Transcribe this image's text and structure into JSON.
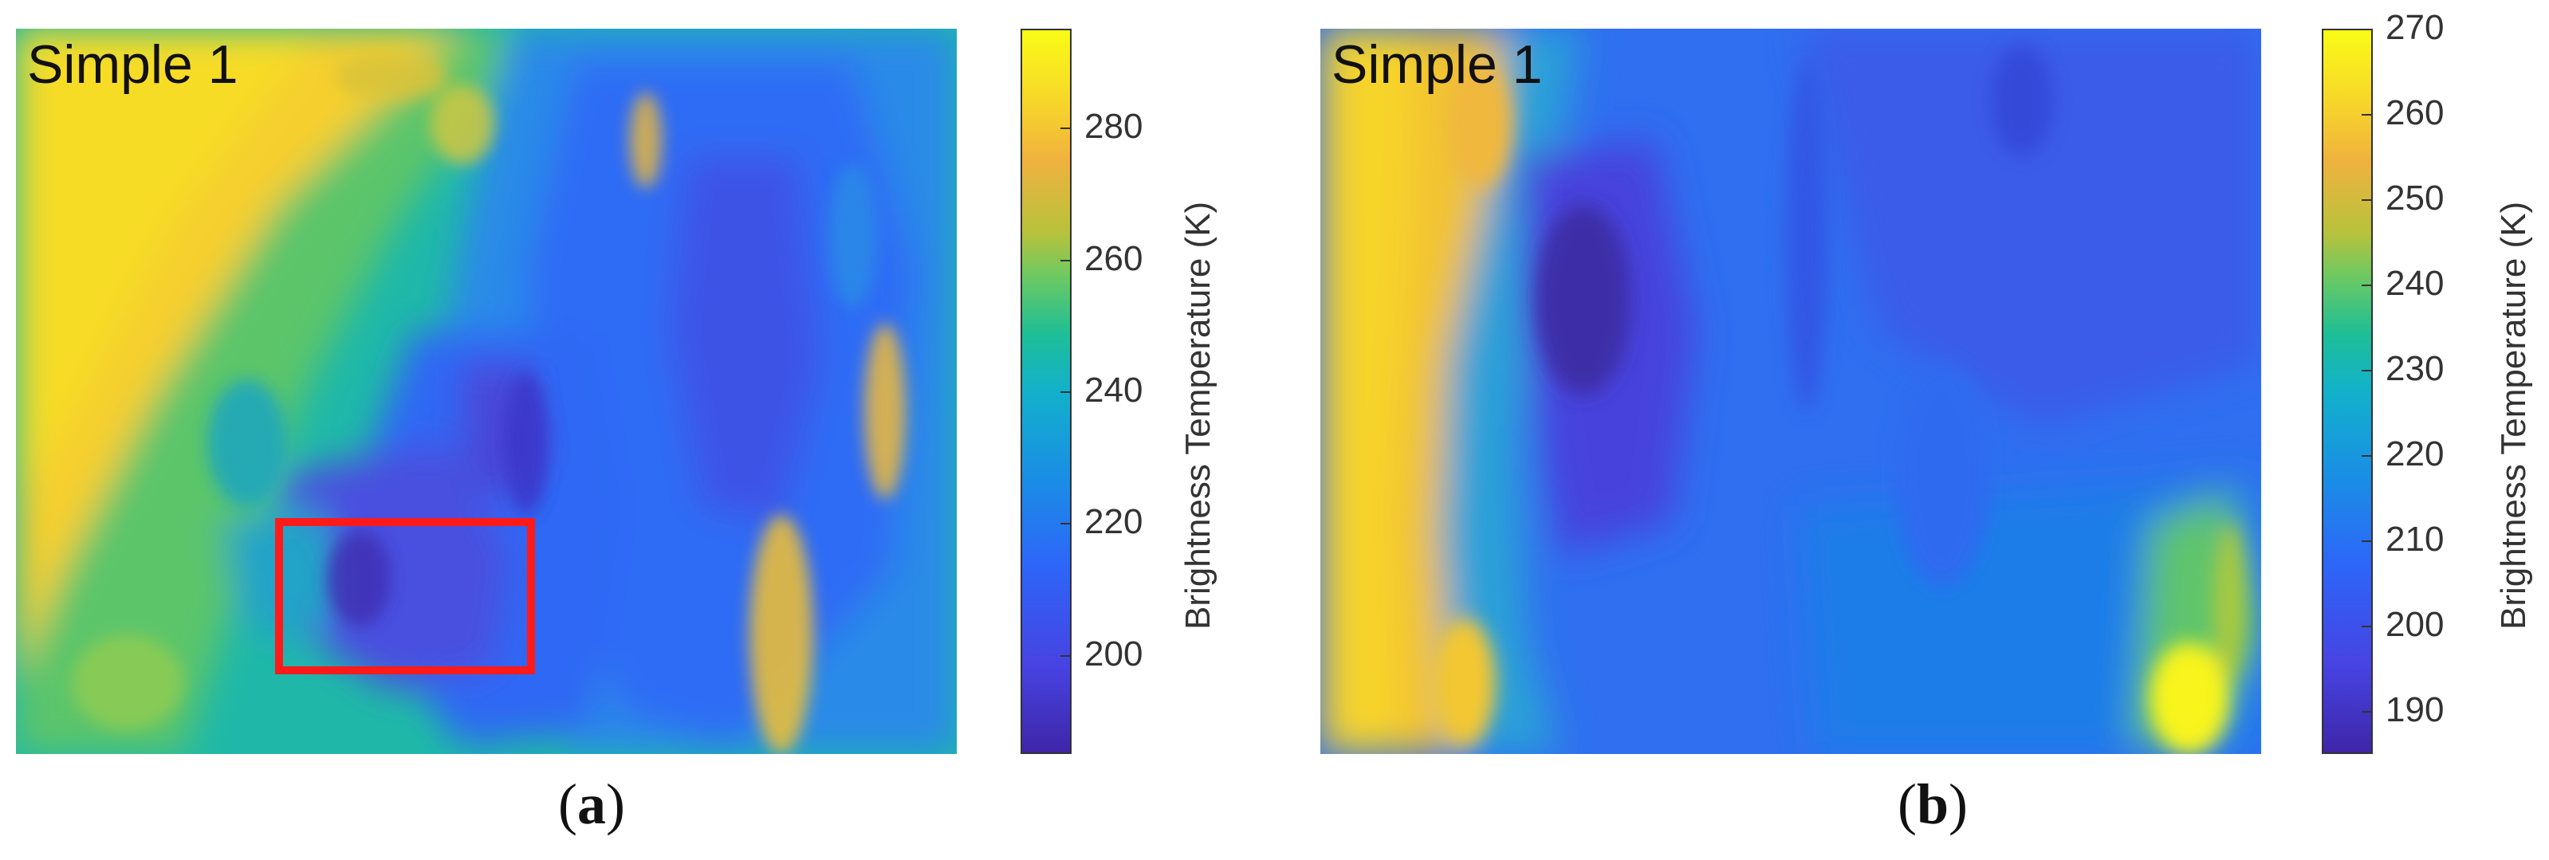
{
  "chart_data": [
    {
      "type": "heatmap",
      "panel": "(a)",
      "label": "Simple 1",
      "colorbar": {
        "title": "Brightness Temperature (K)",
        "ticks": [
          200,
          220,
          240,
          260,
          280
        ],
        "range": [
          185,
          295
        ],
        "colormap": "parula"
      },
      "highlight_box": {
        "color": "#ff1a1a"
      }
    },
    {
      "type": "heatmap",
      "panel": "(b)",
      "label": "Simple 1",
      "colorbar": {
        "title": "Brightness Temperature (K)",
        "ticks": [
          190,
          200,
          210,
          220,
          230,
          240,
          250,
          260,
          270
        ],
        "range": [
          185,
          270
        ],
        "colormap": "parula"
      }
    }
  ],
  "panels": {
    "a": {
      "paren_open": "(",
      "letter": "a",
      "paren_close": ")"
    },
    "b": {
      "paren_open": "(",
      "letter": "b",
      "paren_close": ")"
    }
  }
}
